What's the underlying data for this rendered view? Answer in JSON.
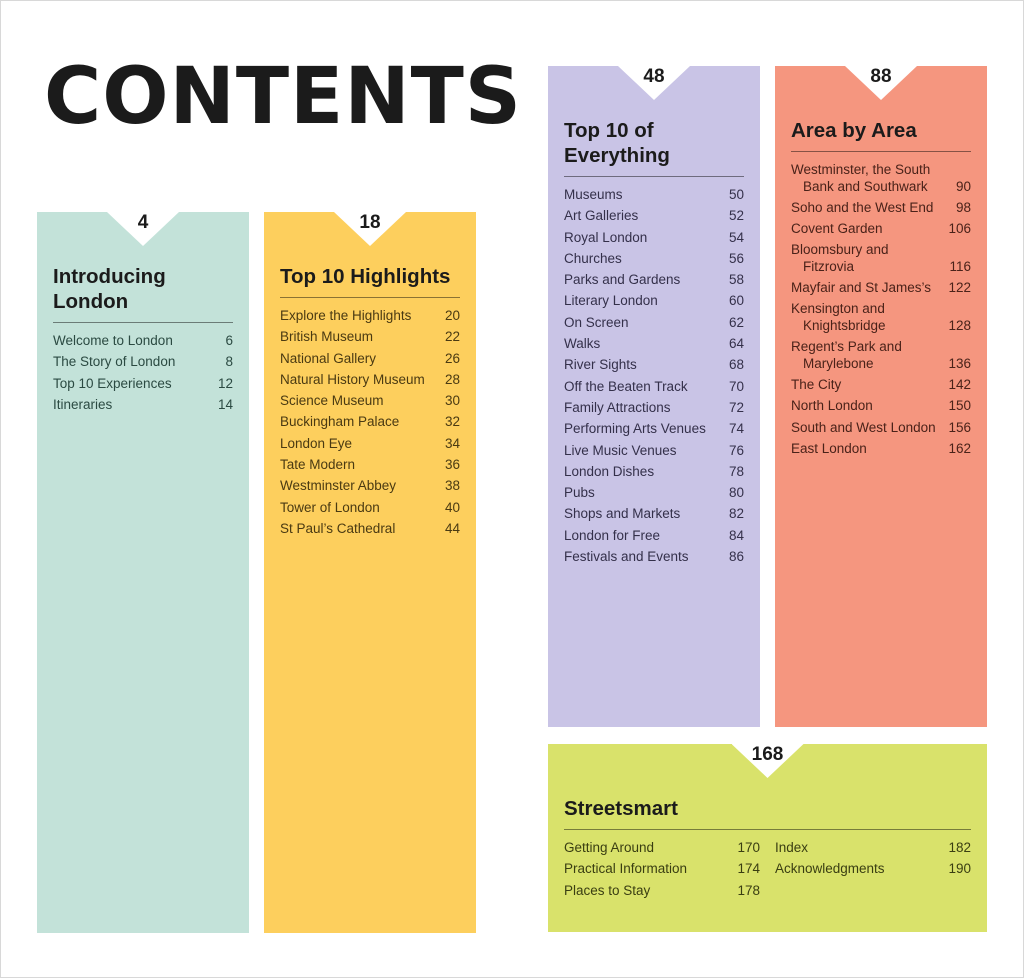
{
  "title": "CONTENTS",
  "panels": [
    {
      "id": "introducing-london",
      "page": "4",
      "heading": "Introducing London",
      "color": "#c3e2d9",
      "text": "#2b4a42",
      "items": [
        [
          "Welcome to London",
          "6"
        ],
        [
          "The Story of London",
          "8"
        ],
        [
          "Top 10 Experiences",
          "12"
        ],
        [
          "Itineraries",
          "14"
        ]
      ]
    },
    {
      "id": "top-10-highlights",
      "page": "18",
      "heading": "Top 10 Highlights",
      "color": "#fdcf5d",
      "text": "#4a3a12",
      "items": [
        [
          "Explore the Highlights",
          "20"
        ],
        [
          "British Museum",
          "22"
        ],
        [
          "National Gallery",
          "26"
        ],
        [
          "Natural History Museum",
          "28"
        ],
        [
          "Science Museum",
          "30"
        ],
        [
          "Buckingham Palace",
          "32"
        ],
        [
          "London Eye",
          "34"
        ],
        [
          "Tate Modern",
          "36"
        ],
        [
          "Westminster Abbey",
          "38"
        ],
        [
          "Tower of London",
          "40"
        ],
        [
          "St Paul’s Cathedral",
          "44"
        ]
      ]
    },
    {
      "id": "top-10-of-everything",
      "page": "48",
      "heading": "Top 10 of Everything",
      "color": "#c9c4e6",
      "text": "#34304a",
      "items": [
        [
          "Museums",
          "50"
        ],
        [
          "Art Galleries",
          "52"
        ],
        [
          "Royal London",
          "54"
        ],
        [
          "Churches",
          "56"
        ],
        [
          "Parks and Gardens",
          "58"
        ],
        [
          "Literary London",
          "60"
        ],
        [
          "On Screen",
          "62"
        ],
        [
          "Walks",
          "64"
        ],
        [
          "River Sights",
          "68"
        ],
        [
          "Off the Beaten Track",
          "70"
        ],
        [
          "Family Attractions",
          "72"
        ],
        [
          "Performing Arts Venues",
          "74"
        ],
        [
          "Live Music Venues",
          "76"
        ],
        [
          "London Dishes",
          "78"
        ],
        [
          "Pubs",
          "80"
        ],
        [
          "Shops and Markets",
          "82"
        ],
        [
          "London for Free",
          "84"
        ],
        [
          "Festivals and Events",
          "86"
        ]
      ]
    },
    {
      "id": "area-by-area",
      "page": "88",
      "heading": "Area by Area",
      "color": "#f5967f",
      "text": "#4a2219",
      "items": [
        [
          "Westminster, the South Bank and Southwark",
          "90"
        ],
        [
          "Soho and the West End",
          "98"
        ],
        [
          "Covent Garden",
          "106"
        ],
        [
          "Bloomsbury and Fitzrovia",
          "116"
        ],
        [
          "Mayfair and St James’s",
          "122"
        ],
        [
          "Kensington and Knightsbridge",
          "128"
        ],
        [
          "Regent’s Park and Marylebone",
          "136"
        ],
        [
          "The City",
          "142"
        ],
        [
          "North London",
          "150"
        ],
        [
          "South and West London",
          "156"
        ],
        [
          "East London",
          "162"
        ]
      ]
    },
    {
      "id": "streetsmart",
      "page": "168",
      "heading": "Streetsmart",
      "color": "#d9e26b",
      "text": "#3a3e12",
      "items": [
        [
          "Getting Around",
          "170"
        ],
        [
          "Practical Information",
          "174"
        ],
        [
          "Places to Stay",
          "178"
        ],
        [
          "Index",
          "182"
        ],
        [
          "Acknowledgments",
          "190"
        ]
      ]
    }
  ]
}
